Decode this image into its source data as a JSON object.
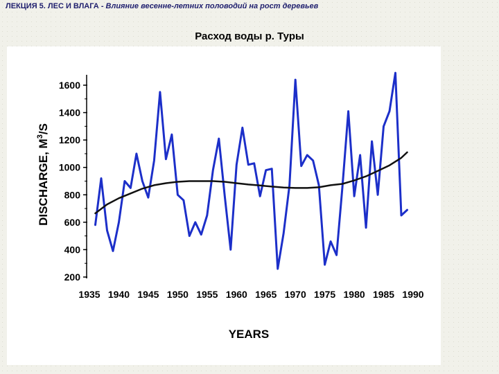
{
  "header": {
    "lecture": "ЛЕКЦИЯ 5. ЛЕС И ВЛАГА",
    "separator": "-",
    "subtitle": "Влияние весенне-летних половодий на рост деревьев"
  },
  "chart_data": {
    "type": "line",
    "title": "Расход воды р. Туры",
    "xlabel": "YEARS",
    "ylabel_prefix": "DISCHARGE, M",
    "ylabel_sup": "3",
    "ylabel_suffix": "/S",
    "xlim": [
      1935,
      1990
    ],
    "ylim": [
      200,
      1700
    ],
    "xticks": [
      1935,
      1940,
      1945,
      1950,
      1955,
      1960,
      1965,
      1970,
      1975,
      1980,
      1985,
      1990
    ],
    "yticks": [
      200,
      400,
      600,
      800,
      1000,
      1200,
      1400,
      1600
    ],
    "grid": false,
    "legend": "none",
    "series": [
      {
        "color": "#1c2fc9",
        "x": [
          1936,
          1937,
          1938,
          1939,
          1940,
          1941,
          1942,
          1943,
          1944,
          1945,
          1946,
          1947,
          1948,
          1949,
          1950,
          1951,
          1952,
          1953,
          1954,
          1955,
          1956,
          1957,
          1958,
          1959,
          1960,
          1961,
          1962,
          1963,
          1964,
          1965,
          1966,
          1967,
          1968,
          1969,
          1970,
          1971,
          1972,
          1973,
          1974,
          1975,
          1976,
          1977,
          1978,
          1979,
          1980,
          1981,
          1982,
          1983,
          1984,
          1985,
          1986,
          1987,
          1988,
          1989
        ],
        "values": [
          580,
          920,
          540,
          390,
          600,
          900,
          850,
          1100,
          900,
          780,
          1050,
          1550,
          1060,
          1240,
          800,
          760,
          500,
          600,
          510,
          650,
          980,
          1210,
          790,
          400,
          1020,
          1290,
          1020,
          1030,
          790,
          980,
          990,
          260,
          520,
          870,
          1640,
          1010,
          1090,
          1050,
          870,
          290,
          460,
          360,
          860,
          1410,
          790,
          1090,
          560,
          1190,
          800,
          1300,
          1410,
          1690,
          650,
          690
        ]
      },
      {
        "color": "#111111",
        "x": [
          1936,
          1938,
          1940,
          1942,
          1944,
          1946,
          1948,
          1950,
          1952,
          1954,
          1956,
          1958,
          1960,
          1962,
          1964,
          1966,
          1968,
          1970,
          1972,
          1974,
          1976,
          1978,
          1980,
          1982,
          1984,
          1986,
          1988,
          1989
        ],
        "values": [
          665,
          730,
          775,
          810,
          845,
          870,
          885,
          895,
          900,
          900,
          900,
          895,
          885,
          875,
          868,
          860,
          853,
          850,
          850,
          855,
          870,
          880,
          905,
          935,
          975,
          1015,
          1070,
          1110
        ]
      }
    ]
  }
}
